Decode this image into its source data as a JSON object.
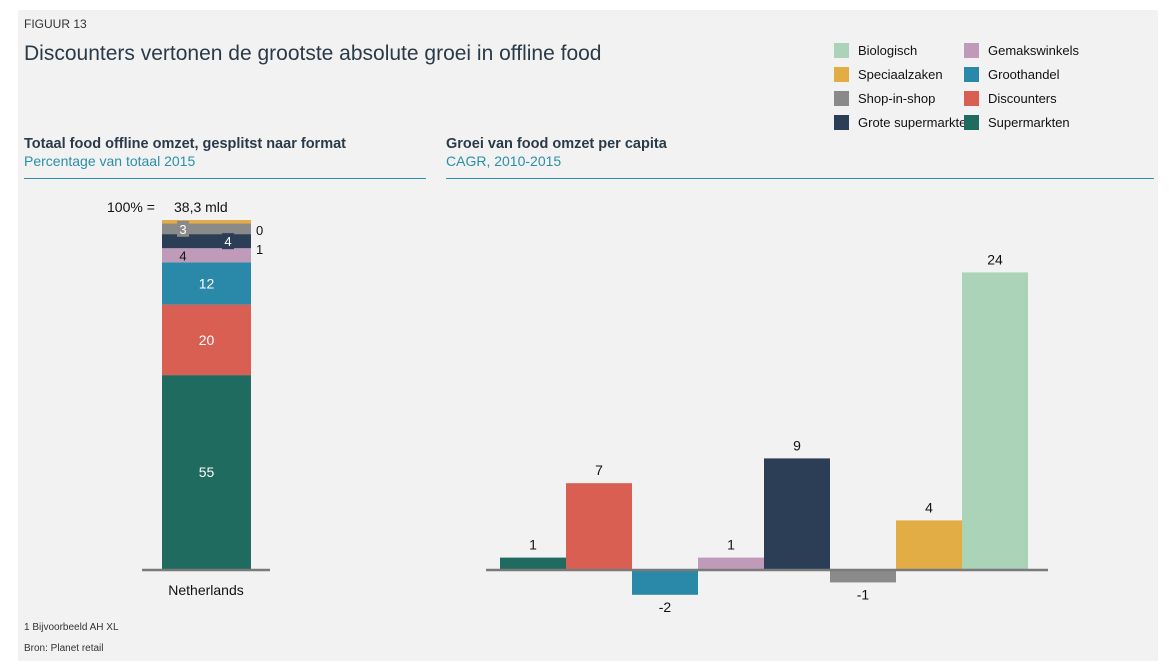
{
  "figure_label": "FIGUUR 13",
  "title": "Discounters vertonen de grootste absolute groei in offline food",
  "colors": {
    "Supermarkten": "#1f6b5f",
    "Discounters": "#d95f52",
    "Groothandel": "#2a88a8",
    "Gemakswinkels": "#bf9bb9",
    "Grote supermarkten": "#2b3e55",
    "Shop-in-shop": "#8a8a8a",
    "Speciaalzaken": "#e3ad46",
    "Biologisch": "#abd3b7"
  },
  "legend": [
    {
      "label": "Biologisch",
      "key": "Biologisch"
    },
    {
      "label": "Gemakswinkels",
      "key": "Gemakswinkels"
    },
    {
      "label": "Speciaalzaken",
      "key": "Speciaalzaken"
    },
    {
      "label": "Groothandel",
      "key": "Groothandel"
    },
    {
      "label": "Shop-in-shop",
      "key": "Shop-in-shop"
    },
    {
      "label": "Discounters",
      "key": "Discounters"
    },
    {
      "label": "Grote supermarkten¹",
      "key": "Grote supermarkten"
    },
    {
      "label": "Supermarkten",
      "key": "Supermarkten"
    }
  ],
  "left_panel": {
    "title": "Totaal food offline omzet, gesplitst naar format",
    "subtitle": "Percentage van totaal 2015"
  },
  "right_panel": {
    "title": "Groei van food omzet per capita",
    "subtitle": "CAGR, 2010-2015"
  },
  "footnotes": [
    "1 Bijvoorbeeld AH XL",
    "Bron: Planet retail"
  ],
  "chart_data": [
    {
      "type": "bar",
      "stacked": true,
      "categories": [
        "Netherlands"
      ],
      "total_label": "100% =",
      "total_value": "38,3 mld",
      "series": [
        {
          "key": "Supermarkten",
          "value": 55
        },
        {
          "key": "Discounters",
          "value": 20
        },
        {
          "key": "Groothandel",
          "value": 12
        },
        {
          "key": "Gemakswinkels",
          "value": 4
        },
        {
          "key": "Grote supermarkten",
          "value": 4
        },
        {
          "key": "Shop-in-shop",
          "value": 3
        },
        {
          "key": "Speciaalzaken",
          "value": 1
        },
        {
          "key": "Biologisch",
          "value": 0
        }
      ]
    },
    {
      "type": "bar",
      "categories": [
        "Supermarkten",
        "Discounters",
        "Groothandel",
        "Gemakswinkels",
        "Grote supermarkten",
        "Shop-in-shop",
        "Speciaalzaken",
        "Biologisch"
      ],
      "values": [
        1,
        7,
        -2,
        1,
        9,
        -1,
        4,
        24
      ],
      "grid": false
    }
  ]
}
